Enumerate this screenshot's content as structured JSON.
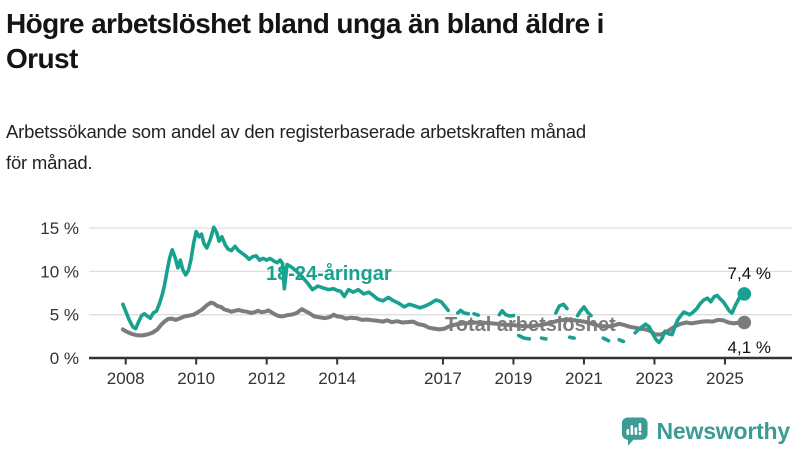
{
  "header": {
    "title_line1": "Högre arbetslöshet bland unga än bland äldre i",
    "title_line2": "Orust",
    "subtitle_line1": "Arbetssökande som andel av den registerbaserade arbetskraften månad",
    "subtitle_line2": "för månad."
  },
  "footer": {
    "brand": "Newsworthy",
    "brand_color": "#3b9c95"
  },
  "chart_data": {
    "type": "line",
    "x_axis": {
      "range": [
        2007.75,
        2025.9
      ],
      "ticks": [
        {
          "year": 2008,
          "label": "2008"
        },
        {
          "year": 2010,
          "label": "2010"
        },
        {
          "year": 2012,
          "label": "2012"
        },
        {
          "year": 2014,
          "label": "2014"
        },
        {
          "year": 2017,
          "label": "2017"
        },
        {
          "year": 2019,
          "label": "2019"
        },
        {
          "year": 2021,
          "label": "2021"
        },
        {
          "year": 2023,
          "label": "2023"
        },
        {
          "year": 2025,
          "label": "2025"
        }
      ]
    },
    "y_axis": {
      "range": [
        0,
        16.5
      ],
      "grid": true,
      "ticks": [
        {
          "value": 0,
          "label": "0 %"
        },
        {
          "value": 5,
          "label": "5 %"
        },
        {
          "value": 10,
          "label": "10 %"
        },
        {
          "value": 15,
          "label": "15 %"
        }
      ]
    },
    "legend_position": "inline-labels",
    "series": [
      {
        "name": "Total arbetslöshet",
        "color": "#7c7c7c",
        "end_value": 4.1,
        "end_label": "4,1 %",
        "points": [
          [
            2007.92,
            3.3
          ],
          [
            2008.0,
            3.1
          ],
          [
            2008.1,
            2.9
          ],
          [
            2008.2,
            2.75
          ],
          [
            2008.3,
            2.65
          ],
          [
            2008.45,
            2.6
          ],
          [
            2008.6,
            2.7
          ],
          [
            2008.75,
            2.9
          ],
          [
            2008.9,
            3.3
          ],
          [
            2009.0,
            3.8
          ],
          [
            2009.1,
            4.2
          ],
          [
            2009.2,
            4.5
          ],
          [
            2009.3,
            4.55
          ],
          [
            2009.42,
            4.4
          ],
          [
            2009.55,
            4.6
          ],
          [
            2009.67,
            4.8
          ],
          [
            2009.8,
            4.9
          ],
          [
            2009.92,
            5.0
          ],
          [
            2010.05,
            5.3
          ],
          [
            2010.17,
            5.6
          ],
          [
            2010.3,
            6.1
          ],
          [
            2010.42,
            6.4
          ],
          [
            2010.5,
            6.3
          ],
          [
            2010.6,
            6.0
          ],
          [
            2010.7,
            5.9
          ],
          [
            2010.8,
            5.6
          ],
          [
            2010.9,
            5.5
          ],
          [
            2011.0,
            5.35
          ],
          [
            2011.1,
            5.45
          ],
          [
            2011.2,
            5.55
          ],
          [
            2011.33,
            5.4
          ],
          [
            2011.45,
            5.35
          ],
          [
            2011.55,
            5.2
          ],
          [
            2011.67,
            5.3
          ],
          [
            2011.75,
            5.45
          ],
          [
            2011.85,
            5.3
          ],
          [
            2011.95,
            5.35
          ],
          [
            2012.05,
            5.5
          ],
          [
            2012.2,
            5.1
          ],
          [
            2012.33,
            4.85
          ],
          [
            2012.45,
            4.8
          ],
          [
            2012.6,
            4.95
          ],
          [
            2012.75,
            5.05
          ],
          [
            2012.85,
            5.2
          ],
          [
            2013.0,
            5.65
          ],
          [
            2013.1,
            5.4
          ],
          [
            2013.2,
            5.2
          ],
          [
            2013.35,
            4.8
          ],
          [
            2013.5,
            4.7
          ],
          [
            2013.65,
            4.6
          ],
          [
            2013.8,
            4.75
          ],
          [
            2013.9,
            5.0
          ],
          [
            2014.0,
            4.8
          ],
          [
            2014.12,
            4.75
          ],
          [
            2014.25,
            4.55
          ],
          [
            2014.4,
            4.65
          ],
          [
            2014.55,
            4.6
          ],
          [
            2014.7,
            4.4
          ],
          [
            2014.85,
            4.45
          ],
          [
            2015.0,
            4.35
          ],
          [
            2015.15,
            4.3
          ],
          [
            2015.3,
            4.2
          ],
          [
            2015.42,
            4.35
          ],
          [
            2015.55,
            4.15
          ],
          [
            2015.7,
            4.25
          ],
          [
            2015.85,
            4.1
          ],
          [
            2016.0,
            4.15
          ],
          [
            2016.15,
            4.2
          ],
          [
            2016.3,
            3.9
          ],
          [
            2016.45,
            3.8
          ],
          [
            2016.6,
            3.5
          ],
          [
            2016.75,
            3.4
          ],
          [
            2016.9,
            3.3
          ],
          [
            2017.05,
            3.4
          ],
          [
            2017.2,
            3.7
          ],
          [
            2017.4,
            3.9
          ],
          [
            2017.6,
            4.0
          ],
          [
            2017.8,
            4.05
          ],
          [
            2018.0,
            4.1
          ],
          [
            2018.25,
            4.05
          ],
          [
            2018.5,
            3.95
          ],
          [
            2018.75,
            3.85
          ],
          [
            2019.0,
            3.8
          ],
          [
            2019.25,
            3.7
          ],
          [
            2019.5,
            3.65
          ],
          [
            2019.75,
            3.8
          ],
          [
            2020.0,
            4.0
          ],
          [
            2020.25,
            4.3
          ],
          [
            2020.5,
            4.45
          ],
          [
            2020.75,
            4.35
          ],
          [
            2021.0,
            4.2
          ],
          [
            2021.2,
            4.0
          ],
          [
            2021.4,
            3.75
          ],
          [
            2021.6,
            3.6
          ],
          [
            2021.8,
            3.7
          ],
          [
            2022.0,
            3.95
          ],
          [
            2022.15,
            3.8
          ],
          [
            2022.3,
            3.6
          ],
          [
            2022.45,
            3.5
          ],
          [
            2022.6,
            3.4
          ],
          [
            2022.75,
            3.3
          ],
          [
            2022.9,
            3.1
          ],
          [
            2023.0,
            2.75
          ],
          [
            2023.15,
            2.7
          ],
          [
            2023.3,
            2.9
          ],
          [
            2023.45,
            3.3
          ],
          [
            2023.6,
            3.7
          ],
          [
            2023.75,
            3.95
          ],
          [
            2023.9,
            4.1
          ],
          [
            2024.05,
            4.0
          ],
          [
            2024.2,
            4.1
          ],
          [
            2024.35,
            4.2
          ],
          [
            2024.5,
            4.25
          ],
          [
            2024.65,
            4.2
          ],
          [
            2024.8,
            4.4
          ],
          [
            2024.95,
            4.35
          ],
          [
            2025.1,
            4.1
          ],
          [
            2025.25,
            4.0
          ],
          [
            2025.4,
            4.1
          ],
          [
            2025.55,
            4.1
          ]
        ]
      },
      {
        "name": "18-24-åringar",
        "color": "#18a18e",
        "end_value": 7.4,
        "end_label": "7,4 %",
        "points": [
          [
            2007.92,
            6.2
          ],
          [
            2008.0,
            5.4
          ],
          [
            2008.1,
            4.4
          ],
          [
            2008.2,
            3.6
          ],
          [
            2008.28,
            3.4
          ],
          [
            2008.37,
            4.2
          ],
          [
            2008.45,
            4.9
          ],
          [
            2008.53,
            5.1
          ],
          [
            2008.62,
            4.8
          ],
          [
            2008.7,
            4.6
          ],
          [
            2008.78,
            5.2
          ],
          [
            2008.87,
            5.4
          ],
          [
            2008.95,
            6.2
          ],
          [
            2009.03,
            7.2
          ],
          [
            2009.1,
            8.4
          ],
          [
            2009.18,
            10.2
          ],
          [
            2009.25,
            11.6
          ],
          [
            2009.32,
            12.5
          ],
          [
            2009.4,
            11.6
          ],
          [
            2009.48,
            10.4
          ],
          [
            2009.55,
            11.3
          ],
          [
            2009.62,
            10.2
          ],
          [
            2009.7,
            9.6
          ],
          [
            2009.78,
            10.1
          ],
          [
            2009.85,
            11.3
          ],
          [
            2009.93,
            13.3
          ],
          [
            2010.0,
            14.6
          ],
          [
            2010.08,
            14.0
          ],
          [
            2010.15,
            14.3
          ],
          [
            2010.22,
            13.2
          ],
          [
            2010.3,
            12.7
          ],
          [
            2010.4,
            13.7
          ],
          [
            2010.5,
            15.1
          ],
          [
            2010.58,
            14.5
          ],
          [
            2010.65,
            13.5
          ],
          [
            2010.73,
            14.0
          ],
          [
            2010.82,
            13.1
          ],
          [
            2010.9,
            12.6
          ],
          [
            2011.0,
            12.4
          ],
          [
            2011.1,
            12.9
          ],
          [
            2011.2,
            12.4
          ],
          [
            2011.3,
            12.1
          ],
          [
            2011.4,
            11.8
          ],
          [
            2011.5,
            11.4
          ],
          [
            2011.6,
            11.7
          ],
          [
            2011.7,
            11.8
          ],
          [
            2011.8,
            11.3
          ],
          [
            2011.9,
            11.5
          ],
          [
            2012.0,
            11.3
          ],
          [
            2012.1,
            11.5
          ],
          [
            2012.2,
            11.2
          ],
          [
            2012.3,
            11.0
          ],
          [
            2012.38,
            11.3
          ],
          [
            2012.45,
            10.9
          ],
          [
            2012.5,
            8.0
          ],
          [
            2012.58,
            10.8
          ],
          [
            2012.7,
            10.5
          ],
          [
            2012.85,
            10.0
          ],
          [
            2013.0,
            9.4
          ],
          [
            2013.15,
            8.7
          ],
          [
            2013.3,
            7.9
          ],
          [
            2013.45,
            8.3
          ],
          [
            2013.6,
            8.1
          ],
          [
            2013.75,
            7.9
          ],
          [
            2013.9,
            8.0
          ],
          [
            2014.0,
            7.8
          ],
          [
            2014.1,
            7.7
          ],
          [
            2014.2,
            7.1
          ],
          [
            2014.32,
            7.9
          ],
          [
            2014.45,
            7.6
          ],
          [
            2014.6,
            7.9
          ],
          [
            2014.75,
            7.4
          ],
          [
            2014.9,
            7.6
          ],
          [
            2015.0,
            7.3
          ],
          [
            2015.15,
            6.8
          ],
          [
            2015.3,
            6.6
          ],
          [
            2015.45,
            7.0
          ],
          [
            2015.6,
            6.6
          ],
          [
            2015.75,
            6.3
          ],
          [
            2015.9,
            5.9
          ],
          [
            2016.05,
            6.2
          ],
          [
            2016.2,
            6.0
          ],
          [
            2016.35,
            5.8
          ],
          [
            2016.5,
            6.0
          ],
          [
            2016.65,
            6.3
          ],
          [
            2016.8,
            6.7
          ],
          [
            2016.95,
            6.5
          ],
          [
            2017.05,
            6.0
          ],
          [
            2017.15,
            5.5
          ],
          null,
          [
            2017.42,
            5.2
          ],
          [
            2017.5,
            5.5
          ],
          [
            2017.6,
            5.2
          ],
          [
            2017.72,
            5.1
          ],
          null,
          [
            2017.88,
            5.1
          ],
          [
            2018.0,
            4.95
          ],
          null,
          [
            2018.6,
            5.0
          ],
          [
            2018.68,
            5.45
          ],
          [
            2018.78,
            5.0
          ],
          [
            2018.9,
            4.85
          ],
          [
            2019.0,
            4.9
          ],
          null,
          [
            2019.15,
            2.6
          ],
          [
            2019.3,
            2.3
          ],
          [
            2019.45,
            2.2
          ],
          null,
          [
            2019.8,
            2.3
          ],
          [
            2019.92,
            2.2
          ],
          null,
          [
            2020.2,
            5.2
          ],
          [
            2020.3,
            6.0
          ],
          [
            2020.42,
            6.2
          ],
          [
            2020.52,
            5.7
          ],
          null,
          [
            2020.6,
            2.4
          ],
          [
            2020.72,
            2.3
          ],
          null,
          [
            2020.82,
            4.9
          ],
          [
            2020.9,
            5.4
          ],
          [
            2021.0,
            5.9
          ],
          [
            2021.1,
            5.3
          ],
          [
            2021.2,
            4.9
          ],
          null,
          [
            2021.55,
            2.3
          ],
          [
            2021.7,
            2.0
          ],
          null,
          [
            2022.0,
            2.1
          ],
          [
            2022.12,
            1.9
          ],
          null,
          [
            2022.45,
            2.9
          ],
          [
            2022.55,
            3.3
          ],
          [
            2022.65,
            3.6
          ],
          [
            2022.75,
            3.9
          ],
          [
            2022.85,
            3.6
          ],
          [
            2022.95,
            2.8
          ],
          [
            2023.05,
            2.1
          ],
          [
            2023.13,
            1.8
          ],
          [
            2023.22,
            2.3
          ],
          [
            2023.3,
            3.1
          ],
          [
            2023.4,
            2.8
          ],
          [
            2023.5,
            2.7
          ],
          [
            2023.58,
            3.6
          ],
          [
            2023.66,
            4.4
          ],
          [
            2023.75,
            4.9
          ],
          [
            2023.83,
            5.3
          ],
          [
            2023.92,
            5.15
          ],
          [
            2024.0,
            5.0
          ],
          [
            2024.1,
            5.3
          ],
          [
            2024.2,
            5.7
          ],
          [
            2024.3,
            6.3
          ],
          [
            2024.4,
            6.7
          ],
          [
            2024.5,
            6.9
          ],
          [
            2024.6,
            6.5
          ],
          [
            2024.7,
            7.1
          ],
          [
            2024.78,
            7.2
          ],
          [
            2024.87,
            6.8
          ],
          [
            2024.95,
            6.5
          ],
          [
            2025.05,
            5.9
          ],
          [
            2025.13,
            5.4
          ],
          [
            2025.2,
            5.2
          ],
          [
            2025.3,
            6.1
          ],
          [
            2025.4,
            6.9
          ],
          [
            2025.48,
            7.2
          ],
          [
            2025.55,
            7.4
          ]
        ]
      }
    ]
  }
}
